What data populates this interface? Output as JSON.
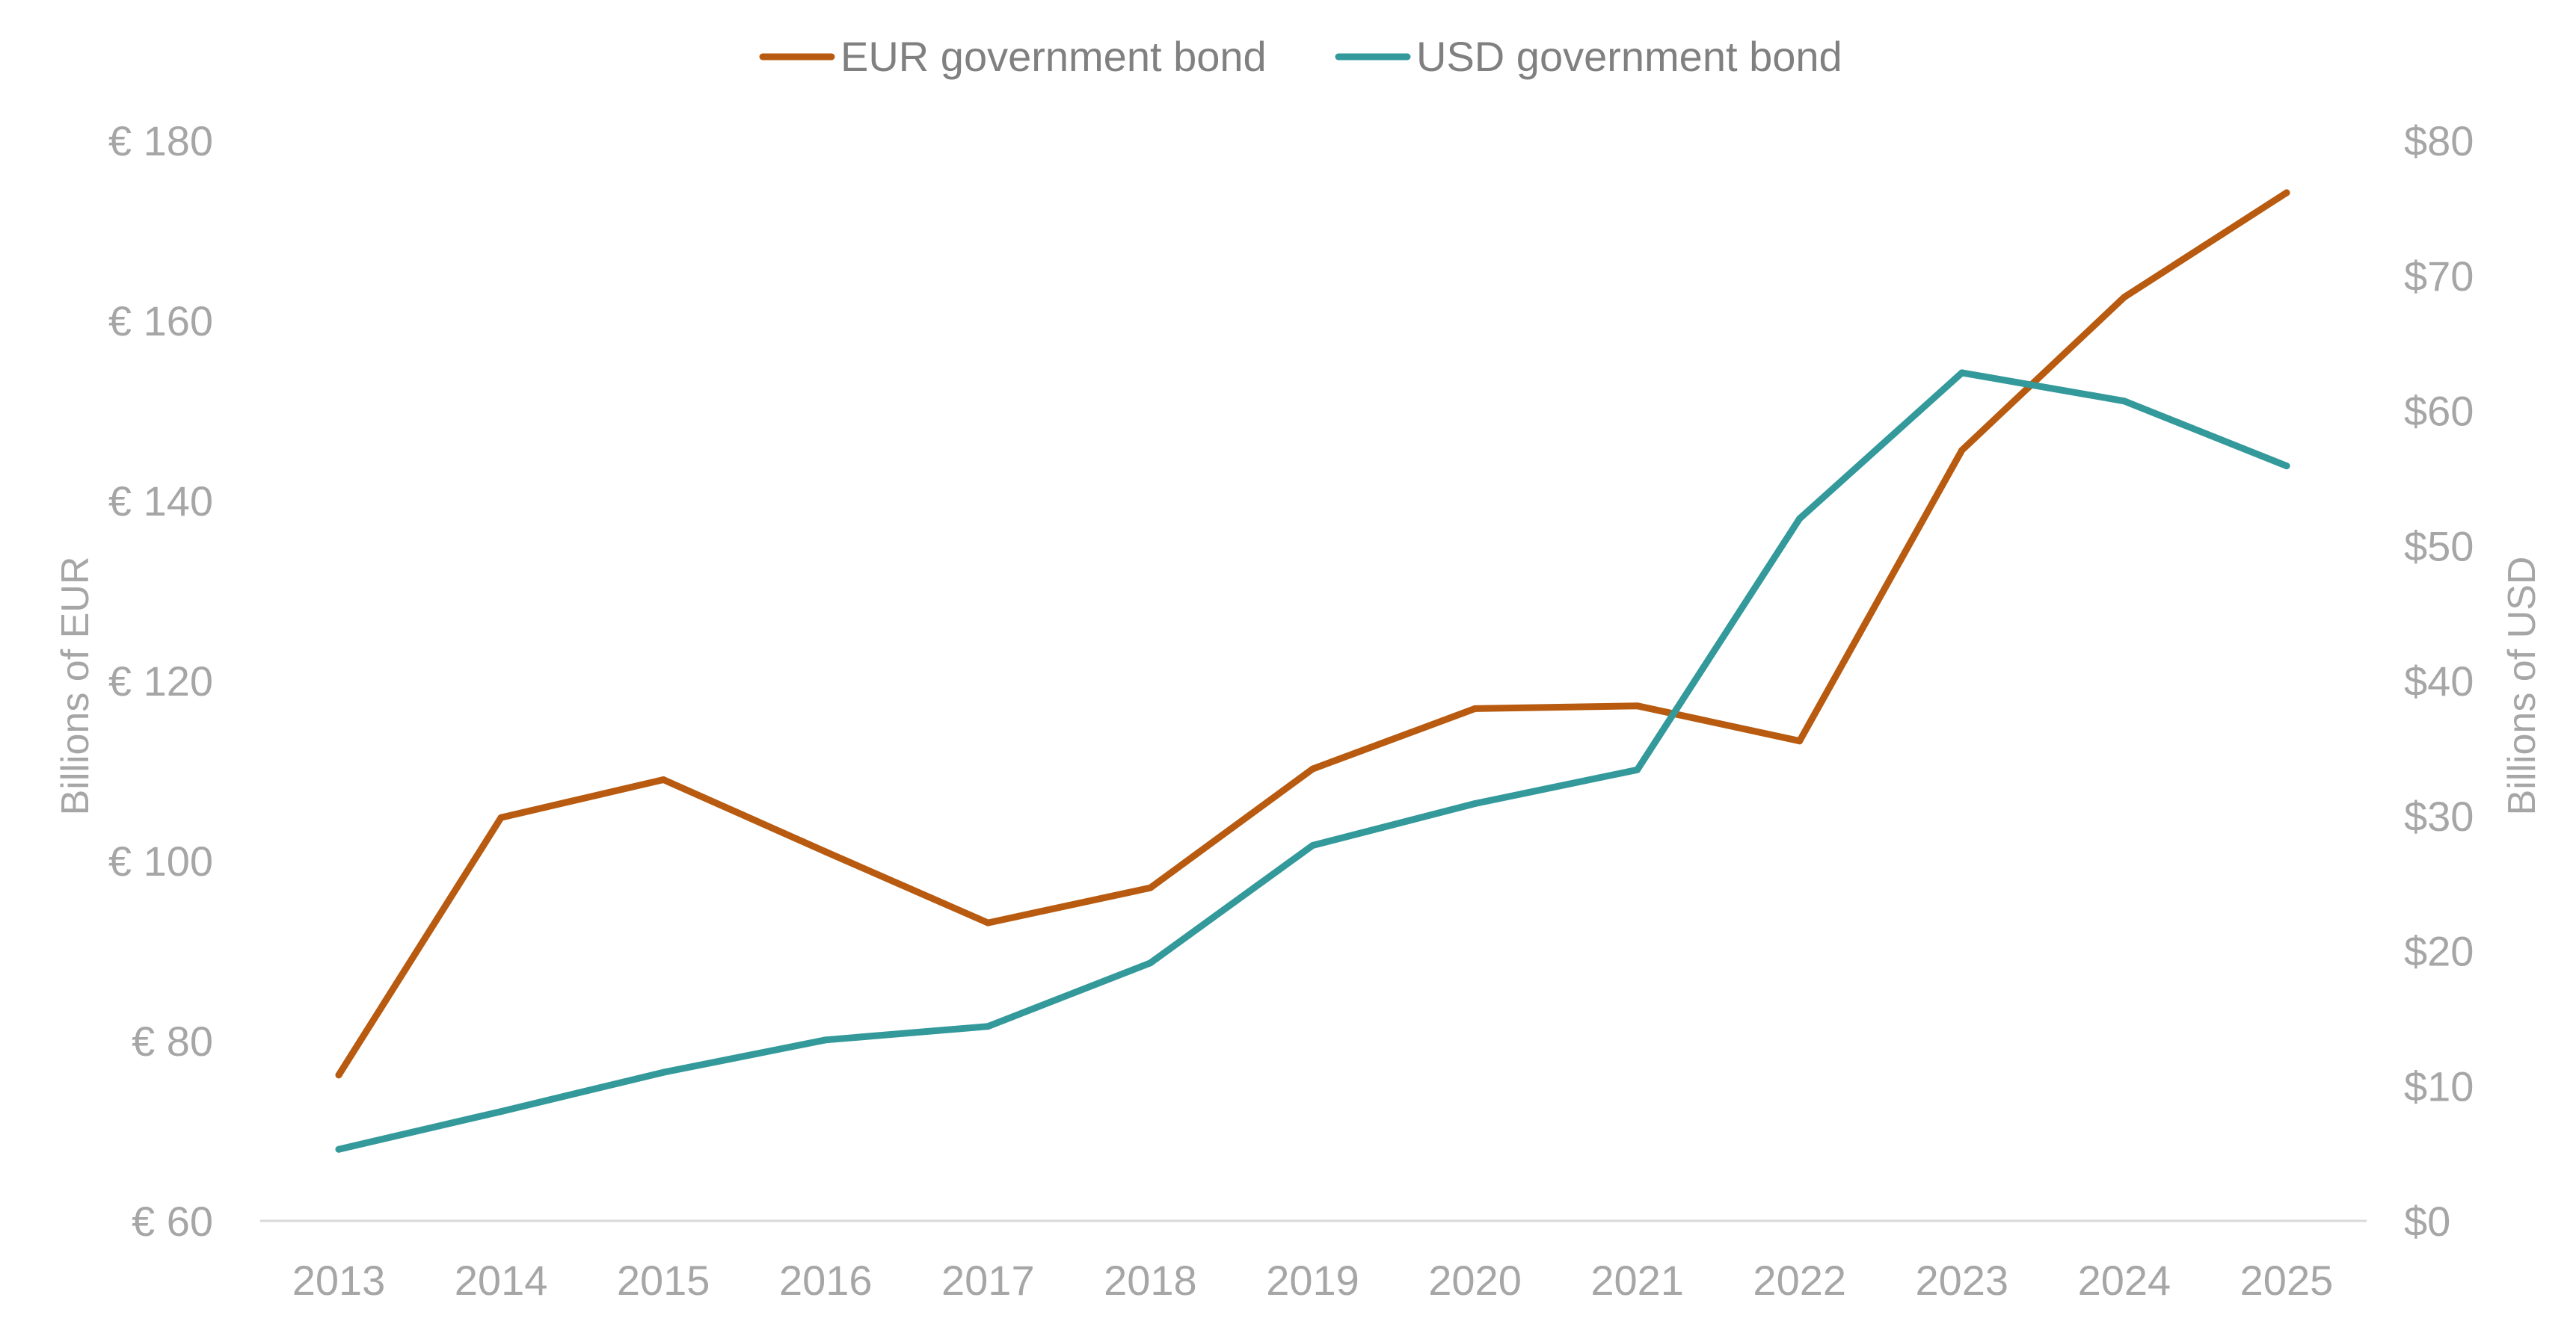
{
  "chart_data": {
    "type": "line",
    "title": "",
    "categories": [
      "2013",
      "2014",
      "2015",
      "2016",
      "2017",
      "2018",
      "2019",
      "2020",
      "2021",
      "2022",
      "2023",
      "2024",
      "2025"
    ],
    "series": [
      {
        "name": "EUR government bond",
        "axis": "left",
        "color": "#b85b10",
        "values": [
          76.2,
          104.8,
          109.0,
          101.0,
          93.1,
          97.0,
          110.2,
          116.9,
          117.2,
          113.3,
          145.6,
          162.6,
          174.2
        ]
      },
      {
        "name": "USD government bond",
        "axis": "right",
        "color": "#33999a",
        "values": [
          5.3,
          8.1,
          11.0,
          13.4,
          14.4,
          19.1,
          27.8,
          30.9,
          33.4,
          52.0,
          62.8,
          60.7,
          55.9
        ]
      }
    ],
    "y_left": {
      "label": "Billions of EUR",
      "range": [
        60,
        180
      ],
      "ticks": [
        60,
        80,
        100,
        120,
        140,
        160,
        180
      ],
      "tick_labels": [
        "€ 60",
        "€ 80",
        "€ 100",
        "€ 120",
        "€ 140",
        "€ 160",
        "€ 180"
      ]
    },
    "y_right": {
      "label": "Billions of USD",
      "range": [
        0,
        80
      ],
      "ticks": [
        0,
        10,
        20,
        30,
        40,
        50,
        60,
        70,
        80
      ],
      "tick_labels": [
        "$0",
        "$10",
        "$20",
        "$30",
        "$40",
        "$50",
        "$60",
        "$70",
        "$80"
      ]
    },
    "xlabel": "",
    "grid": false,
    "legend": "top-center"
  },
  "colors": {
    "eur": "#b85b10",
    "usd": "#33999a",
    "axis_text": "#a6a6a6",
    "baseline": "#d9d9d9"
  }
}
